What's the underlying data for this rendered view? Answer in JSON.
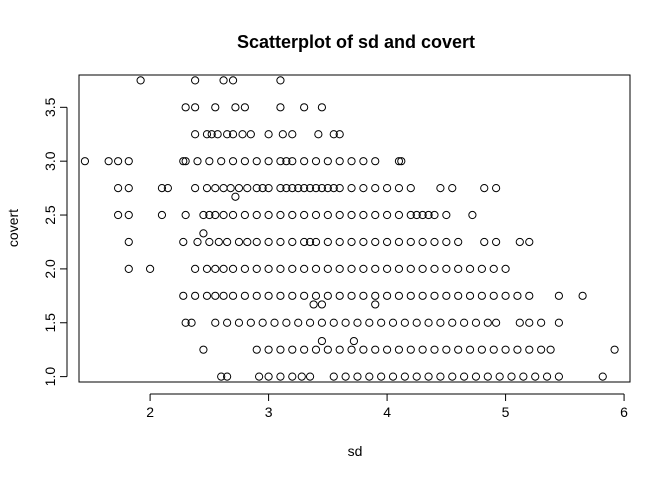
{
  "chart_data": {
    "type": "scatter",
    "title": "Scatterplot of sd and covert",
    "xlabel": "sd",
    "ylabel": "covert",
    "xlim": [
      1.4,
      6.05
    ],
    "ylim": [
      0.95,
      3.8
    ],
    "xticks": [
      2,
      3,
      4,
      5,
      6
    ],
    "yticks": [
      1.0,
      1.5,
      2.0,
      2.5,
      3.0,
      3.5
    ],
    "xtick_labels": [
      "2",
      "3",
      "4",
      "5",
      "6"
    ],
    "ytick_labels": [
      "1.0",
      "1.5",
      "2.0",
      "2.5",
      "3.0",
      "3.5"
    ],
    "grid": false,
    "marker": "open-circle",
    "points": [
      [
        1.92,
        3.75
      ],
      [
        2.38,
        3.75
      ],
      [
        2.62,
        3.75
      ],
      [
        2.7,
        3.75
      ],
      [
        3.1,
        3.75
      ],
      [
        2.3,
        3.5
      ],
      [
        2.38,
        3.5
      ],
      [
        2.55,
        3.5
      ],
      [
        2.72,
        3.5
      ],
      [
        2.8,
        3.5
      ],
      [
        3.1,
        3.5
      ],
      [
        3.3,
        3.5
      ],
      [
        3.45,
        3.5
      ],
      [
        2.38,
        3.25
      ],
      [
        2.48,
        3.25
      ],
      [
        2.52,
        3.25
      ],
      [
        2.57,
        3.25
      ],
      [
        2.65,
        3.25
      ],
      [
        2.7,
        3.25
      ],
      [
        2.78,
        3.25
      ],
      [
        2.85,
        3.25
      ],
      [
        3.0,
        3.25
      ],
      [
        3.12,
        3.25
      ],
      [
        3.2,
        3.25
      ],
      [
        3.42,
        3.25
      ],
      [
        3.55,
        3.25
      ],
      [
        3.6,
        3.25
      ],
      [
        1.45,
        3.0
      ],
      [
        1.65,
        3.0
      ],
      [
        1.73,
        3.0
      ],
      [
        1.82,
        3.0
      ],
      [
        2.28,
        3.0
      ],
      [
        2.3,
        3.0
      ],
      [
        2.4,
        3.0
      ],
      [
        2.5,
        3.0
      ],
      [
        2.6,
        3.0
      ],
      [
        2.7,
        3.0
      ],
      [
        2.8,
        3.0
      ],
      [
        2.9,
        3.0
      ],
      [
        3.0,
        3.0
      ],
      [
        3.1,
        3.0
      ],
      [
        3.15,
        3.0
      ],
      [
        3.2,
        3.0
      ],
      [
        3.3,
        3.0
      ],
      [
        3.4,
        3.0
      ],
      [
        3.5,
        3.0
      ],
      [
        3.6,
        3.0
      ],
      [
        3.7,
        3.0
      ],
      [
        3.8,
        3.0
      ],
      [
        3.9,
        3.0
      ],
      [
        4.1,
        3.0
      ],
      [
        4.12,
        3.0
      ],
      [
        1.73,
        2.75
      ],
      [
        1.82,
        2.75
      ],
      [
        2.1,
        2.75
      ],
      [
        2.15,
        2.75
      ],
      [
        2.38,
        2.75
      ],
      [
        2.48,
        2.75
      ],
      [
        2.55,
        2.75
      ],
      [
        2.62,
        2.75
      ],
      [
        2.68,
        2.75
      ],
      [
        2.75,
        2.75
      ],
      [
        2.82,
        2.75
      ],
      [
        2.9,
        2.75
      ],
      [
        2.95,
        2.75
      ],
      [
        3.0,
        2.75
      ],
      [
        3.1,
        2.75
      ],
      [
        3.15,
        2.75
      ],
      [
        3.2,
        2.75
      ],
      [
        3.25,
        2.75
      ],
      [
        3.3,
        2.75
      ],
      [
        3.35,
        2.75
      ],
      [
        3.4,
        2.75
      ],
      [
        3.45,
        2.75
      ],
      [
        3.5,
        2.75
      ],
      [
        3.55,
        2.75
      ],
      [
        3.6,
        2.75
      ],
      [
        3.7,
        2.75
      ],
      [
        3.8,
        2.75
      ],
      [
        3.9,
        2.75
      ],
      [
        4.0,
        2.75
      ],
      [
        4.1,
        2.75
      ],
      [
        4.2,
        2.75
      ],
      [
        4.45,
        2.75
      ],
      [
        4.55,
        2.75
      ],
      [
        4.82,
        2.75
      ],
      [
        4.92,
        2.75
      ],
      [
        2.72,
        2.67
      ],
      [
        1.73,
        2.5
      ],
      [
        1.82,
        2.5
      ],
      [
        2.1,
        2.5
      ],
      [
        2.3,
        2.5
      ],
      [
        2.45,
        2.5
      ],
      [
        2.5,
        2.5
      ],
      [
        2.55,
        2.5
      ],
      [
        2.62,
        2.5
      ],
      [
        2.7,
        2.5
      ],
      [
        2.8,
        2.5
      ],
      [
        2.9,
        2.5
      ],
      [
        3.0,
        2.5
      ],
      [
        3.1,
        2.5
      ],
      [
        3.2,
        2.5
      ],
      [
        3.3,
        2.5
      ],
      [
        3.4,
        2.5
      ],
      [
        3.5,
        2.5
      ],
      [
        3.6,
        2.5
      ],
      [
        3.7,
        2.5
      ],
      [
        3.8,
        2.5
      ],
      [
        3.9,
        2.5
      ],
      [
        4.0,
        2.5
      ],
      [
        4.1,
        2.5
      ],
      [
        4.2,
        2.5
      ],
      [
        4.25,
        2.5
      ],
      [
        4.3,
        2.5
      ],
      [
        4.35,
        2.5
      ],
      [
        4.4,
        2.5
      ],
      [
        4.5,
        2.5
      ],
      [
        4.72,
        2.5
      ],
      [
        2.45,
        2.33
      ],
      [
        1.82,
        2.25
      ],
      [
        2.28,
        2.25
      ],
      [
        2.4,
        2.25
      ],
      [
        2.5,
        2.25
      ],
      [
        2.58,
        2.25
      ],
      [
        2.65,
        2.25
      ],
      [
        2.75,
        2.25
      ],
      [
        2.82,
        2.25
      ],
      [
        2.9,
        2.25
      ],
      [
        3.0,
        2.25
      ],
      [
        3.1,
        2.25
      ],
      [
        3.2,
        2.25
      ],
      [
        3.3,
        2.25
      ],
      [
        3.35,
        2.25
      ],
      [
        3.4,
        2.25
      ],
      [
        3.5,
        2.25
      ],
      [
        3.6,
        2.25
      ],
      [
        3.7,
        2.25
      ],
      [
        3.8,
        2.25
      ],
      [
        3.9,
        2.25
      ],
      [
        4.0,
        2.25
      ],
      [
        4.1,
        2.25
      ],
      [
        4.2,
        2.25
      ],
      [
        4.3,
        2.25
      ],
      [
        4.4,
        2.25
      ],
      [
        4.5,
        2.25
      ],
      [
        4.6,
        2.25
      ],
      [
        4.82,
        2.25
      ],
      [
        4.92,
        2.25
      ],
      [
        5.12,
        2.25
      ],
      [
        5.2,
        2.25
      ],
      [
        1.82,
        2.0
      ],
      [
        2.0,
        2.0
      ],
      [
        2.38,
        2.0
      ],
      [
        2.48,
        2.0
      ],
      [
        2.55,
        2.0
      ],
      [
        2.62,
        2.0
      ],
      [
        2.7,
        2.0
      ],
      [
        2.8,
        2.0
      ],
      [
        2.9,
        2.0
      ],
      [
        3.0,
        2.0
      ],
      [
        3.1,
        2.0
      ],
      [
        3.2,
        2.0
      ],
      [
        3.3,
        2.0
      ],
      [
        3.4,
        2.0
      ],
      [
        3.5,
        2.0
      ],
      [
        3.6,
        2.0
      ],
      [
        3.7,
        2.0
      ],
      [
        3.8,
        2.0
      ],
      [
        3.9,
        2.0
      ],
      [
        4.0,
        2.0
      ],
      [
        4.1,
        2.0
      ],
      [
        4.2,
        2.0
      ],
      [
        4.3,
        2.0
      ],
      [
        4.4,
        2.0
      ],
      [
        4.5,
        2.0
      ],
      [
        4.6,
        2.0
      ],
      [
        4.7,
        2.0
      ],
      [
        4.8,
        2.0
      ],
      [
        4.9,
        2.0
      ],
      [
        5.0,
        2.0
      ],
      [
        2.28,
        1.75
      ],
      [
        2.38,
        1.75
      ],
      [
        2.48,
        1.75
      ],
      [
        2.55,
        1.75
      ],
      [
        2.62,
        1.75
      ],
      [
        2.7,
        1.75
      ],
      [
        2.8,
        1.75
      ],
      [
        2.9,
        1.75
      ],
      [
        3.0,
        1.75
      ],
      [
        3.1,
        1.75
      ],
      [
        3.2,
        1.75
      ],
      [
        3.3,
        1.75
      ],
      [
        3.4,
        1.75
      ],
      [
        3.5,
        1.75
      ],
      [
        3.6,
        1.75
      ],
      [
        3.7,
        1.75
      ],
      [
        3.8,
        1.75
      ],
      [
        3.9,
        1.75
      ],
      [
        4.0,
        1.75
      ],
      [
        4.1,
        1.75
      ],
      [
        4.2,
        1.75
      ],
      [
        4.3,
        1.75
      ],
      [
        4.4,
        1.75
      ],
      [
        4.5,
        1.75
      ],
      [
        4.6,
        1.75
      ],
      [
        4.7,
        1.75
      ],
      [
        4.8,
        1.75
      ],
      [
        4.9,
        1.75
      ],
      [
        5.0,
        1.75
      ],
      [
        5.1,
        1.75
      ],
      [
        5.2,
        1.75
      ],
      [
        5.45,
        1.75
      ],
      [
        5.65,
        1.75
      ],
      [
        3.38,
        1.67
      ],
      [
        3.45,
        1.67
      ],
      [
        3.9,
        1.67
      ],
      [
        2.3,
        1.5
      ],
      [
        2.35,
        1.5
      ],
      [
        2.55,
        1.5
      ],
      [
        2.65,
        1.5
      ],
      [
        2.75,
        1.5
      ],
      [
        2.85,
        1.5
      ],
      [
        2.95,
        1.5
      ],
      [
        3.05,
        1.5
      ],
      [
        3.15,
        1.5
      ],
      [
        3.25,
        1.5
      ],
      [
        3.35,
        1.5
      ],
      [
        3.45,
        1.5
      ],
      [
        3.55,
        1.5
      ],
      [
        3.65,
        1.5
      ],
      [
        3.75,
        1.5
      ],
      [
        3.85,
        1.5
      ],
      [
        3.95,
        1.5
      ],
      [
        4.05,
        1.5
      ],
      [
        4.15,
        1.5
      ],
      [
        4.25,
        1.5
      ],
      [
        4.35,
        1.5
      ],
      [
        4.45,
        1.5
      ],
      [
        4.55,
        1.5
      ],
      [
        4.65,
        1.5
      ],
      [
        4.75,
        1.5
      ],
      [
        4.85,
        1.5
      ],
      [
        4.92,
        1.5
      ],
      [
        5.12,
        1.5
      ],
      [
        5.2,
        1.5
      ],
      [
        5.3,
        1.5
      ],
      [
        5.45,
        1.5
      ],
      [
        3.45,
        1.33
      ],
      [
        3.72,
        1.33
      ],
      [
        2.45,
        1.25
      ],
      [
        2.9,
        1.25
      ],
      [
        3.0,
        1.25
      ],
      [
        3.1,
        1.25
      ],
      [
        3.2,
        1.25
      ],
      [
        3.3,
        1.25
      ],
      [
        3.4,
        1.25
      ],
      [
        3.5,
        1.25
      ],
      [
        3.6,
        1.25
      ],
      [
        3.7,
        1.25
      ],
      [
        3.8,
        1.25
      ],
      [
        3.9,
        1.25
      ],
      [
        4.0,
        1.25
      ],
      [
        4.1,
        1.25
      ],
      [
        4.2,
        1.25
      ],
      [
        4.3,
        1.25
      ],
      [
        4.4,
        1.25
      ],
      [
        4.5,
        1.25
      ],
      [
        4.6,
        1.25
      ],
      [
        4.7,
        1.25
      ],
      [
        4.8,
        1.25
      ],
      [
        4.9,
        1.25
      ],
      [
        5.0,
        1.25
      ],
      [
        5.1,
        1.25
      ],
      [
        5.2,
        1.25
      ],
      [
        5.3,
        1.25
      ],
      [
        5.38,
        1.25
      ],
      [
        5.92,
        1.25
      ],
      [
        2.6,
        1.0
      ],
      [
        2.65,
        1.0
      ],
      [
        2.92,
        1.0
      ],
      [
        3.0,
        1.0
      ],
      [
        3.1,
        1.0
      ],
      [
        3.2,
        1.0
      ],
      [
        3.28,
        1.0
      ],
      [
        3.35,
        1.0
      ],
      [
        3.55,
        1.0
      ],
      [
        3.65,
        1.0
      ],
      [
        3.75,
        1.0
      ],
      [
        3.85,
        1.0
      ],
      [
        3.95,
        1.0
      ],
      [
        4.05,
        1.0
      ],
      [
        4.15,
        1.0
      ],
      [
        4.25,
        1.0
      ],
      [
        4.35,
        1.0
      ],
      [
        4.45,
        1.0
      ],
      [
        4.55,
        1.0
      ],
      [
        4.65,
        1.0
      ],
      [
        4.75,
        1.0
      ],
      [
        4.85,
        1.0
      ],
      [
        4.95,
        1.0
      ],
      [
        5.05,
        1.0
      ],
      [
        5.15,
        1.0
      ],
      [
        5.25,
        1.0
      ],
      [
        5.35,
        1.0
      ],
      [
        5.45,
        1.0
      ],
      [
        5.82,
        1.0
      ]
    ]
  }
}
